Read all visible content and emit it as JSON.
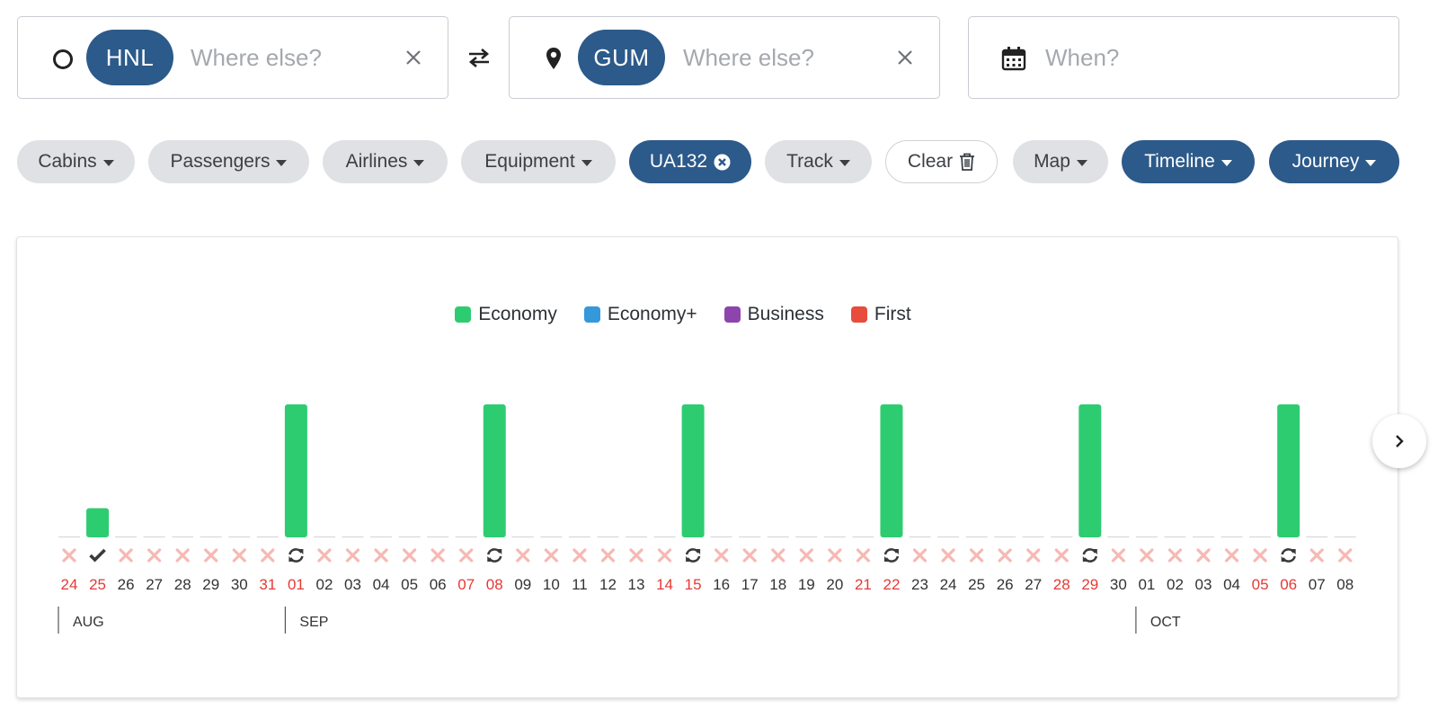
{
  "search": {
    "origin": {
      "code": "HNL",
      "placeholder": "Where else?"
    },
    "destination": {
      "code": "GUM",
      "placeholder": "Where else?"
    },
    "date": {
      "placeholder": "When?"
    }
  },
  "filters": {
    "cabins": "Cabins",
    "passengers": "Passengers",
    "airlines": "Airlines",
    "equipment": "Equipment",
    "flight": "UA132",
    "track": "Track",
    "clear": "Clear",
    "map": "Map",
    "timeline": "Timeline",
    "journey": "Journey"
  },
  "legend": [
    {
      "label": "Economy",
      "color": "#2ecc71"
    },
    {
      "label": "Economy+",
      "color": "#3498db"
    },
    {
      "label": "Business",
      "color": "#8e44ad"
    },
    {
      "label": "First",
      "color": "#e74c3c"
    }
  ],
  "chart_data": {
    "type": "bar",
    "series": [
      {
        "name": "Economy",
        "color": "#2ecc71"
      }
    ],
    "days": [
      {
        "day": "24",
        "weekend": true,
        "status": "none",
        "value": 0
      },
      {
        "day": "25",
        "weekend": true,
        "status": "check",
        "value": 0.22
      },
      {
        "day": "26",
        "weekend": false,
        "status": "none",
        "value": 0
      },
      {
        "day": "27",
        "weekend": false,
        "status": "none",
        "value": 0
      },
      {
        "day": "28",
        "weekend": false,
        "status": "none",
        "value": 0
      },
      {
        "day": "29",
        "weekend": false,
        "status": "none",
        "value": 0
      },
      {
        "day": "30",
        "weekend": false,
        "status": "none",
        "value": 0
      },
      {
        "day": "31",
        "weekend": true,
        "status": "none",
        "value": 0
      },
      {
        "day": "01",
        "weekend": true,
        "status": "repeat",
        "value": 1
      },
      {
        "day": "02",
        "weekend": false,
        "status": "none",
        "value": 0
      },
      {
        "day": "03",
        "weekend": false,
        "status": "none",
        "value": 0
      },
      {
        "day": "04",
        "weekend": false,
        "status": "none",
        "value": 0
      },
      {
        "day": "05",
        "weekend": false,
        "status": "none",
        "value": 0
      },
      {
        "day": "06",
        "weekend": false,
        "status": "none",
        "value": 0
      },
      {
        "day": "07",
        "weekend": true,
        "status": "none",
        "value": 0
      },
      {
        "day": "08",
        "weekend": true,
        "status": "repeat",
        "value": 1
      },
      {
        "day": "09",
        "weekend": false,
        "status": "none",
        "value": 0
      },
      {
        "day": "10",
        "weekend": false,
        "status": "none",
        "value": 0
      },
      {
        "day": "11",
        "weekend": false,
        "status": "none",
        "value": 0
      },
      {
        "day": "12",
        "weekend": false,
        "status": "none",
        "value": 0
      },
      {
        "day": "13",
        "weekend": false,
        "status": "none",
        "value": 0
      },
      {
        "day": "14",
        "weekend": true,
        "status": "none",
        "value": 0
      },
      {
        "day": "15",
        "weekend": true,
        "status": "repeat",
        "value": 1
      },
      {
        "day": "16",
        "weekend": false,
        "status": "none",
        "value": 0
      },
      {
        "day": "17",
        "weekend": false,
        "status": "none",
        "value": 0
      },
      {
        "day": "18",
        "weekend": false,
        "status": "none",
        "value": 0
      },
      {
        "day": "19",
        "weekend": false,
        "status": "none",
        "value": 0
      },
      {
        "day": "20",
        "weekend": false,
        "status": "none",
        "value": 0
      },
      {
        "day": "21",
        "weekend": true,
        "status": "none",
        "value": 0
      },
      {
        "day": "22",
        "weekend": true,
        "status": "repeat",
        "value": 1
      },
      {
        "day": "23",
        "weekend": false,
        "status": "none",
        "value": 0
      },
      {
        "day": "24",
        "weekend": false,
        "status": "none",
        "value": 0
      },
      {
        "day": "25",
        "weekend": false,
        "status": "none",
        "value": 0
      },
      {
        "day": "26",
        "weekend": false,
        "status": "none",
        "value": 0
      },
      {
        "day": "27",
        "weekend": false,
        "status": "none",
        "value": 0
      },
      {
        "day": "28",
        "weekend": true,
        "status": "none",
        "value": 0
      },
      {
        "day": "29",
        "weekend": true,
        "status": "repeat",
        "value": 1
      },
      {
        "day": "30",
        "weekend": false,
        "status": "none",
        "value": 0
      },
      {
        "day": "01",
        "weekend": false,
        "status": "none",
        "value": 0
      },
      {
        "day": "02",
        "weekend": false,
        "status": "none",
        "value": 0
      },
      {
        "day": "03",
        "weekend": false,
        "status": "none",
        "value": 0
      },
      {
        "day": "04",
        "weekend": false,
        "status": "none",
        "value": 0
      },
      {
        "day": "05",
        "weekend": true,
        "status": "none",
        "value": 0
      },
      {
        "day": "06",
        "weekend": true,
        "status": "repeat",
        "value": 1
      },
      {
        "day": "07",
        "weekend": false,
        "status": "none",
        "value": 0
      },
      {
        "day": "08",
        "weekend": false,
        "status": "none",
        "value": 0
      }
    ],
    "months": [
      {
        "label": "AUG",
        "start_index": 0
      },
      {
        "label": "SEP",
        "start_index": 8
      },
      {
        "label": "OCT",
        "start_index": 38
      }
    ]
  }
}
